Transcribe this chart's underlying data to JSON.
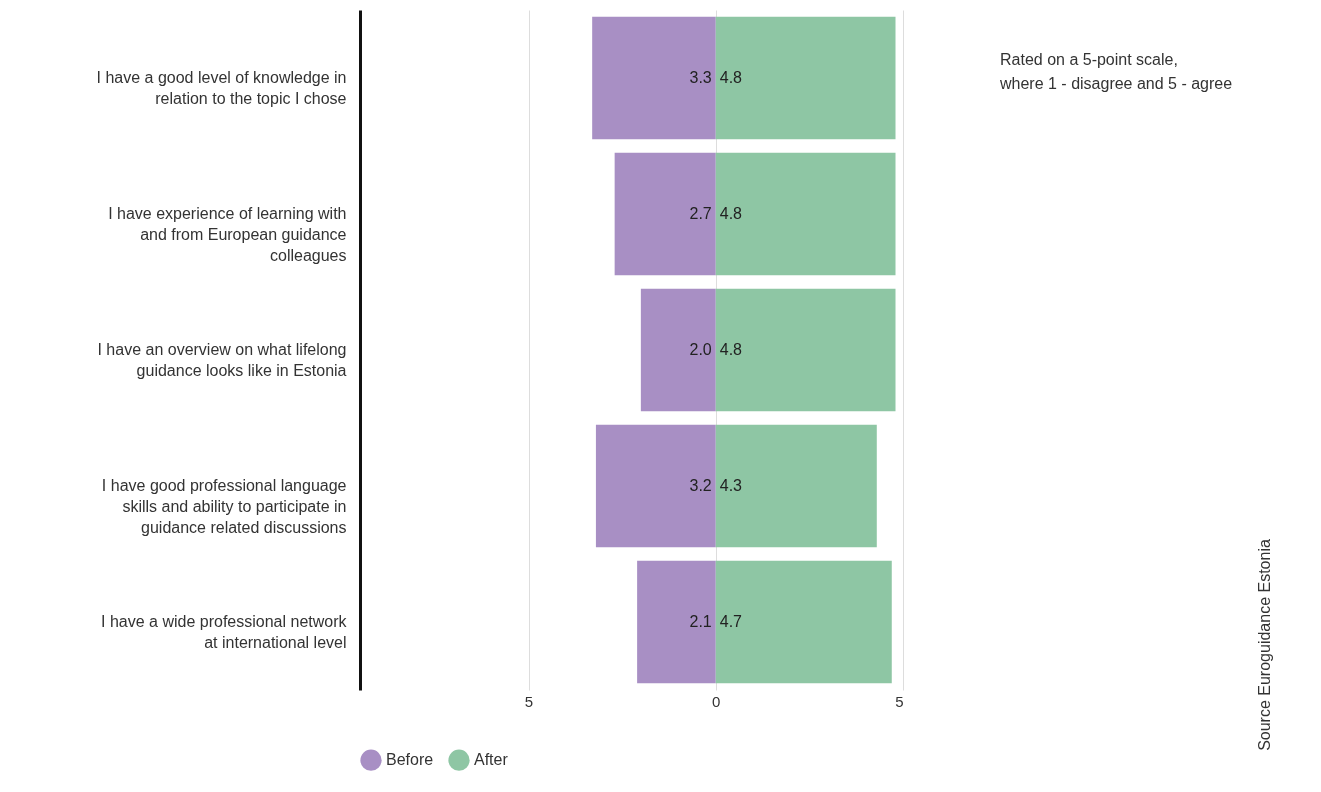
{
  "chart_data": {
    "type": "bar",
    "orientation": "horizontal",
    "categories": [
      "I have a good level of knowledge in relation to the topic I chose",
      "I have experience of learning with and from European guidance colleagues",
      "I have an overview on what lifelong guidance looks like in Estonia",
      "I have good professional language skills and ability to participate in guidance related discussions",
      "I have a wide professional network at international level"
    ],
    "series": [
      {
        "name": "Before",
        "color": "#a88fc4",
        "values": [
          3.3,
          2.7,
          2.0,
          3.2,
          2.1
        ],
        "base": [
          -3.3,
          -2.7,
          -2.0,
          -3.2,
          -2.1
        ],
        "value_labels": [
          "3.3",
          "2.7",
          "2.0",
          "3.2",
          "2.1"
        ]
      },
      {
        "name": "After",
        "color": "#8ec6a4",
        "values": [
          4.8,
          4.8,
          4.8,
          4.3,
          4.7
        ],
        "value_labels": [
          "4.8",
          "4.8",
          "4.8",
          "4.3",
          "4.7"
        ]
      }
    ],
    "xlim": [
      -9.5,
      5
    ],
    "xticks": [
      {
        "value": -5,
        "label": "5"
      },
      0,
      5
    ],
    "grid": "x",
    "legend": "bottom",
    "annotations": [
      "Rated on a 5-point scale,\nwhere 1 - disagree and 5 - agree",
      "Source Euroguidance Estonia"
    ]
  }
}
